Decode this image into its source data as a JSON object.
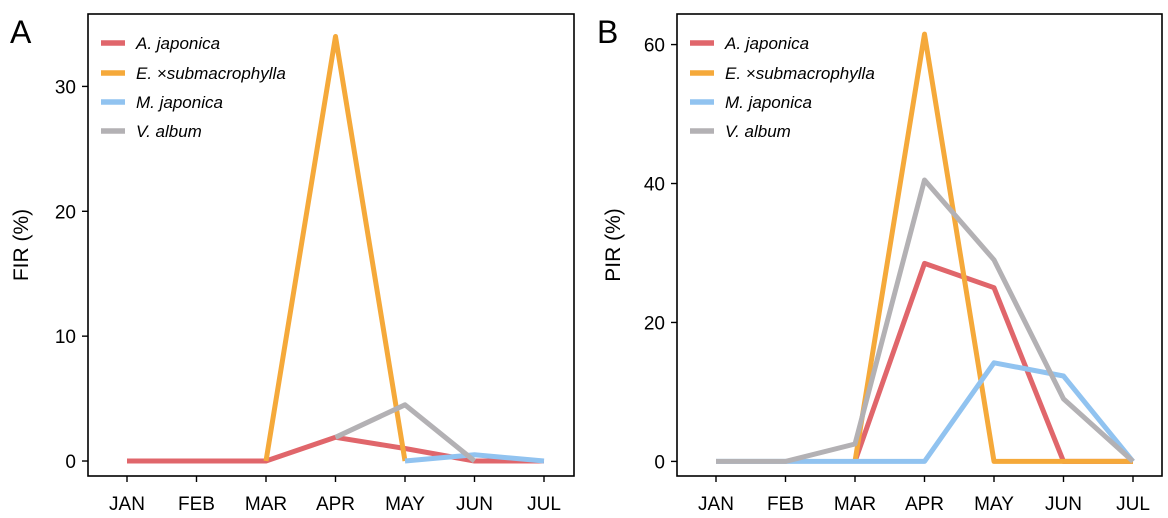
{
  "chart_data": [
    {
      "type": "line",
      "panel_label": "A",
      "xlabel": "",
      "ylabel": "FIR (%)",
      "categories": [
        "JAN",
        "FEB",
        "MAR",
        "APR",
        "MAY",
        "JUN",
        "JUL"
      ],
      "ylim": [
        -1.2,
        35.8
      ],
      "yticks": [
        0,
        10,
        20,
        30
      ],
      "grid": false,
      "legend_position": "top-left",
      "series": [
        {
          "name": "A. japonica",
          "color": "#e0666b",
          "values": [
            0,
            0,
            0,
            1.9,
            1.0,
            0,
            0
          ]
        },
        {
          "name": "E. ×submacrophylla",
          "color": "#f5a93a",
          "values": [
            null,
            null,
            0,
            34.0,
            0,
            null,
            null
          ]
        },
        {
          "name": "M. japonica",
          "color": "#91c3f0",
          "values": [
            null,
            null,
            null,
            null,
            0,
            0.5,
            0
          ]
        },
        {
          "name": "V. album",
          "color": "#b3b1b4",
          "values": [
            null,
            null,
            null,
            1.9,
            4.5,
            0,
            null
          ]
        }
      ]
    },
    {
      "type": "line",
      "panel_label": "B",
      "xlabel": "",
      "ylabel": "PIR (%)",
      "categories": [
        "JAN",
        "FEB",
        "MAR",
        "APR",
        "MAY",
        "JUN",
        "JUL"
      ],
      "ylim": [
        -2.1,
        64.4
      ],
      "yticks": [
        0,
        20,
        40,
        60
      ],
      "grid": false,
      "legend_position": "top-left",
      "series": [
        {
          "name": "A. japonica",
          "color": "#e0666b",
          "values": [
            null,
            null,
            0,
            28.5,
            25.0,
            0,
            0
          ]
        },
        {
          "name": "E. ×submacrophylla",
          "color": "#f5a93a",
          "values": [
            null,
            null,
            0,
            61.5,
            0,
            0,
            0
          ]
        },
        {
          "name": "M. japonica",
          "color": "#91c3f0",
          "values": [
            0,
            0,
            0,
            0,
            14.2,
            12.3,
            0
          ]
        },
        {
          "name": "V. album",
          "color": "#b3b1b4",
          "values": [
            0,
            0,
            2.5,
            40.5,
            29.0,
            9.0,
            0
          ]
        }
      ]
    }
  ]
}
